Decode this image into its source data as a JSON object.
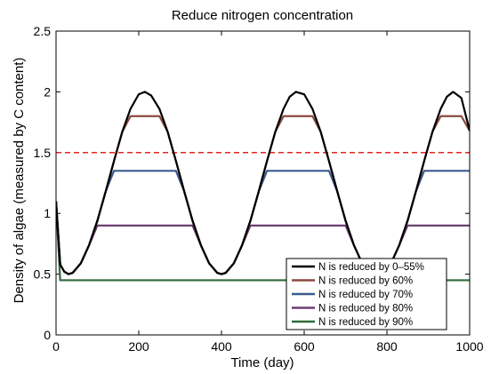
{
  "chart_data": {
    "type": "line",
    "title": "Reduce nitrogen concentration",
    "xlabel": "Time (day)",
    "ylabel": "Density of algae (measured by C content)",
    "xlim": [
      0,
      1000
    ],
    "ylim": [
      0,
      2.5
    ],
    "xticks": [
      0,
      200,
      400,
      600,
      800,
      1000
    ],
    "xtick_labels": [
      "0",
      "200",
      "400",
      "600",
      "800",
      "1000"
    ],
    "yticks": [
      0,
      0.5,
      1,
      1.5,
      2,
      2.5
    ],
    "ytick_labels": [
      "0",
      "0.5",
      "1",
      "1.5",
      "2",
      "2.5"
    ],
    "grid": false,
    "legend_position": "bottom-right",
    "x": [
      0,
      10,
      20,
      30,
      40,
      60,
      80,
      100,
      120,
      140,
      160,
      180,
      200,
      215,
      230,
      250,
      270,
      290,
      310,
      330,
      350,
      370,
      390,
      400,
      410,
      430,
      450,
      470,
      490,
      510,
      530,
      550,
      565,
      580,
      600,
      620,
      640,
      660,
      680,
      700,
      720,
      740,
      760,
      775,
      790,
      810,
      830,
      850,
      870,
      890,
      910,
      930,
      945,
      960,
      980,
      1000
    ],
    "series": [
      {
        "name": "N is reduced by 0–55%",
        "color": "#000000",
        "values": [
          1.1,
          0.58,
          0.52,
          0.5,
          0.51,
          0.59,
          0.74,
          0.94,
          1.18,
          1.43,
          1.67,
          1.86,
          1.98,
          2.0,
          1.97,
          1.86,
          1.67,
          1.43,
          1.18,
          0.94,
          0.74,
          0.59,
          0.51,
          0.5,
          0.51,
          0.59,
          0.74,
          0.94,
          1.18,
          1.43,
          1.67,
          1.86,
          1.96,
          2.0,
          1.98,
          1.86,
          1.67,
          1.43,
          1.18,
          0.94,
          0.74,
          0.59,
          0.51,
          0.5,
          0.51,
          0.59,
          0.74,
          0.94,
          1.18,
          1.43,
          1.67,
          1.86,
          1.96,
          2.0,
          1.95,
          1.68
        ]
      },
      {
        "name": "N is reduced by 60%",
        "color": "#8b4a3f",
        "values": [
          1.1,
          0.58,
          0.52,
          0.5,
          0.51,
          0.59,
          0.74,
          0.94,
          1.18,
          1.43,
          1.67,
          1.8,
          1.8,
          1.8,
          1.8,
          1.8,
          1.67,
          1.43,
          1.18,
          0.94,
          0.74,
          0.59,
          0.51,
          0.5,
          0.51,
          0.59,
          0.74,
          0.94,
          1.18,
          1.43,
          1.67,
          1.8,
          1.8,
          1.8,
          1.8,
          1.8,
          1.67,
          1.43,
          1.18,
          0.94,
          0.74,
          0.59,
          0.51,
          0.5,
          0.51,
          0.59,
          0.74,
          0.94,
          1.18,
          1.43,
          1.67,
          1.8,
          1.8,
          1.8,
          1.8,
          1.68
        ]
      },
      {
        "name": "N is reduced by 70%",
        "color": "#3b5a8e",
        "values": [
          1.1,
          0.58,
          0.52,
          0.5,
          0.51,
          0.59,
          0.74,
          0.94,
          1.18,
          1.35,
          1.35,
          1.35,
          1.35,
          1.35,
          1.35,
          1.35,
          1.35,
          1.35,
          1.18,
          0.94,
          0.74,
          0.59,
          0.51,
          0.5,
          0.51,
          0.59,
          0.74,
          0.94,
          1.18,
          1.35,
          1.35,
          1.35,
          1.35,
          1.35,
          1.35,
          1.35,
          1.35,
          1.35,
          1.18,
          0.94,
          0.74,
          0.59,
          0.51,
          0.5,
          0.51,
          0.59,
          0.74,
          0.94,
          1.18,
          1.35,
          1.35,
          1.35,
          1.35,
          1.35,
          1.35,
          1.35
        ]
      },
      {
        "name": "N is reduced by 80%",
        "color": "#6d3f73",
        "values": [
          1.1,
          0.58,
          0.52,
          0.5,
          0.51,
          0.59,
          0.74,
          0.9,
          0.9,
          0.9,
          0.9,
          0.9,
          0.9,
          0.9,
          0.9,
          0.9,
          0.9,
          0.9,
          0.9,
          0.9,
          0.74,
          0.59,
          0.51,
          0.5,
          0.51,
          0.59,
          0.74,
          0.9,
          0.9,
          0.9,
          0.9,
          0.9,
          0.9,
          0.9,
          0.9,
          0.9,
          0.9,
          0.9,
          0.9,
          0.9,
          0.74,
          0.59,
          0.51,
          0.5,
          0.51,
          0.59,
          0.74,
          0.9,
          0.9,
          0.9,
          0.9,
          0.9,
          0.9,
          0.9,
          0.9,
          0.9
        ]
      },
      {
        "name": "N is reduced by 90%",
        "color": "#2f6a3a",
        "values": [
          1.1,
          0.45,
          0.45,
          0.45,
          0.45,
          0.45,
          0.45,
          0.45,
          0.45,
          0.45,
          0.45,
          0.45,
          0.45,
          0.45,
          0.45,
          0.45,
          0.45,
          0.45,
          0.45,
          0.45,
          0.45,
          0.45,
          0.45,
          0.45,
          0.45,
          0.45,
          0.45,
          0.45,
          0.45,
          0.45,
          0.45,
          0.45,
          0.45,
          0.45,
          0.45,
          0.45,
          0.45,
          0.45,
          0.45,
          0.45,
          0.45,
          0.45,
          0.45,
          0.45,
          0.45,
          0.45,
          0.45,
          0.45,
          0.45,
          0.45,
          0.45,
          0.45,
          0.45,
          0.45,
          0.45,
          0.45
        ]
      }
    ],
    "reference_line": {
      "y": 1.5,
      "color": "#e0251f",
      "style": "dashed"
    }
  }
}
